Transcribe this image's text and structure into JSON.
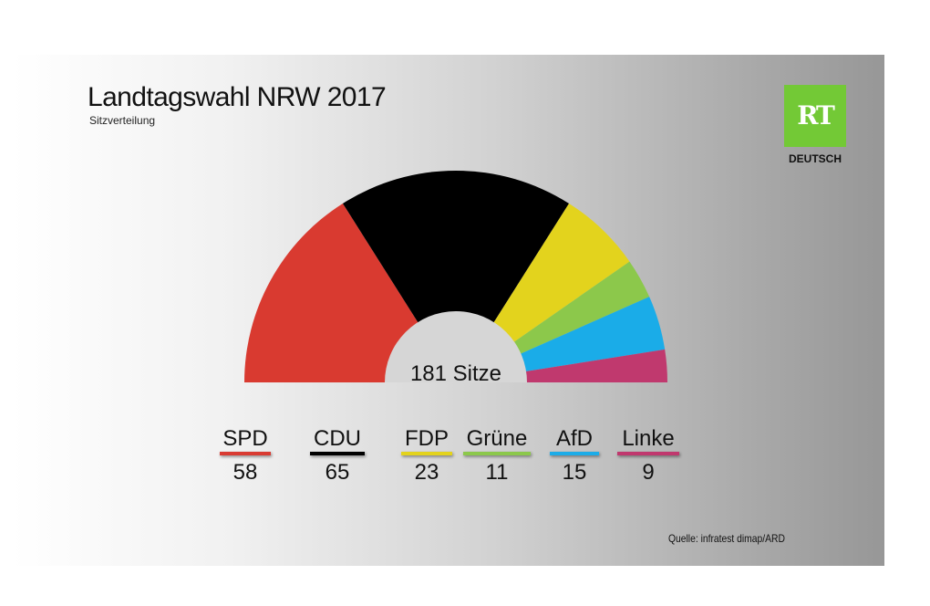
{
  "title": "Landtagswahl NRW 2017",
  "subtitle": "Sitzverteilung",
  "logo": {
    "mark": "RT",
    "caption": "DEUTSCH",
    "color": "#73c936"
  },
  "source": "Quelle: infratest dimap/ARD",
  "chart_data": {
    "type": "pie",
    "subtype": "semicircle-parliament",
    "title": "Landtagswahl NRW 2017",
    "subtitle": "Sitzverteilung",
    "center_label": "181 Sitze",
    "total": 181,
    "categories": [
      "SPD",
      "CDU",
      "FDP",
      "Grüne",
      "AfD",
      "Linke"
    ],
    "values": [
      58,
      65,
      23,
      11,
      15,
      9
    ],
    "colors": [
      "#d93a30",
      "#000000",
      "#e3d31d",
      "#8cc84b",
      "#1aace8",
      "#c0396e"
    ],
    "legend_position": "bottom"
  }
}
